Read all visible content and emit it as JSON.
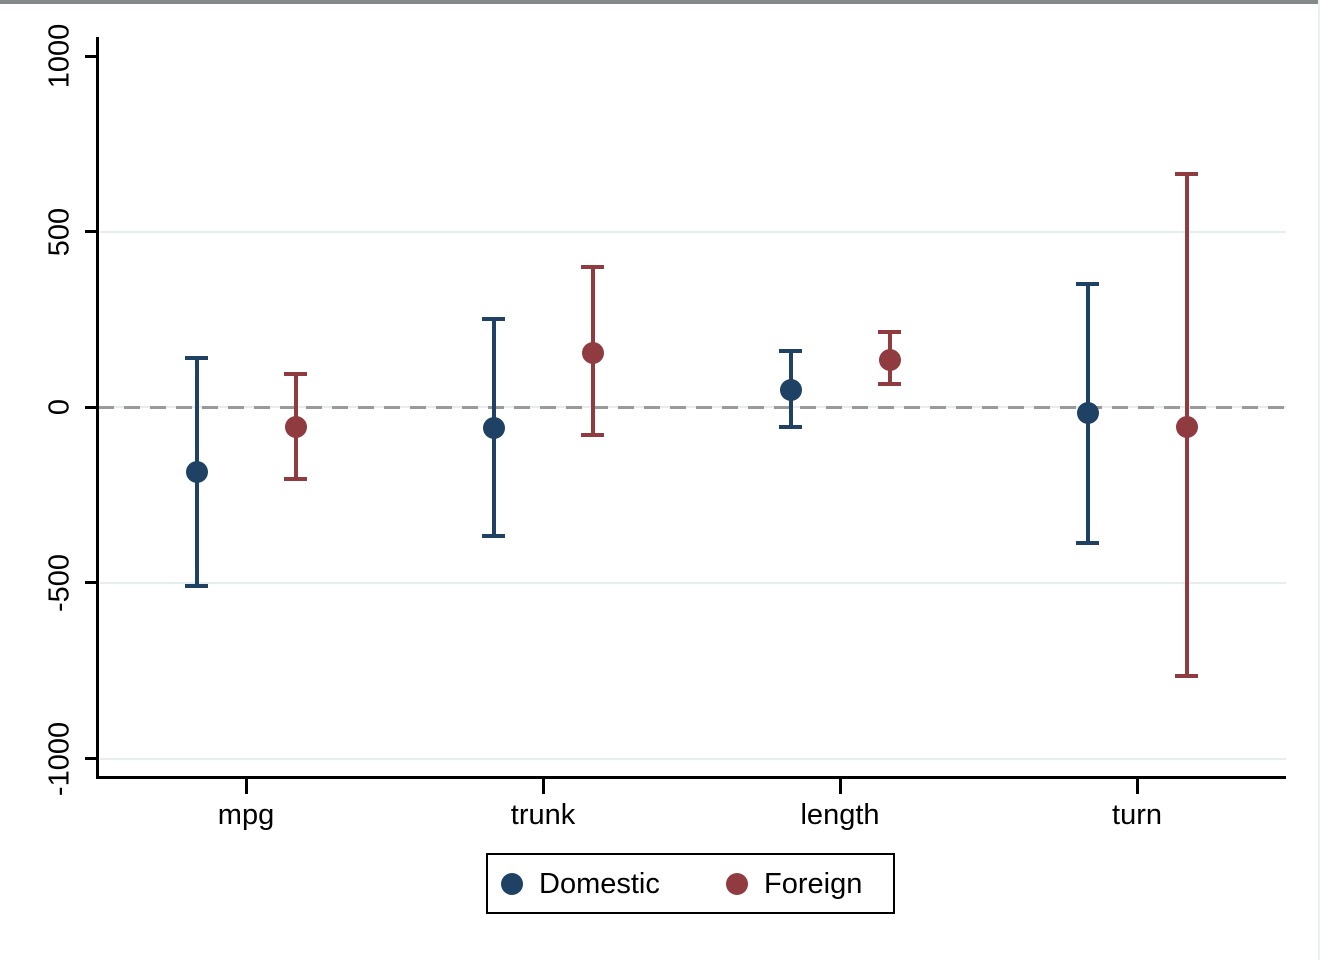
{
  "figure": {
    "background": "#ffffff",
    "top_strip_color": "#848889"
  },
  "chart_data": {
    "type": "scatter",
    "subtype": "coefficient-plot-with-error-bars",
    "title": "",
    "categories": [
      "mpg",
      "trunk",
      "length",
      "turn"
    ],
    "series": [
      {
        "name": "Domestic",
        "color": "#1e4164",
        "estimates": [
          -185,
          -60,
          50,
          -15
        ],
        "ci_low": [
          -510,
          -365,
          -55,
          -385
        ],
        "ci_high": [
          140,
          250,
          160,
          350
        ]
      },
      {
        "name": "Foreign",
        "color": "#903b3f",
        "estimates": [
          -55,
          155,
          135,
          -55
        ],
        "ci_low": [
          -205,
          -80,
          65,
          -765
        ],
        "ci_high": [
          95,
          400,
          215,
          665
        ]
      }
    ],
    "y_axis": {
      "tick_values": [
        1000,
        500,
        0,
        -500,
        -1000
      ],
      "tick_labels": [
        "1000",
        "500",
        "0",
        "-500",
        "-1000"
      ],
      "gridline_values": [
        500,
        0,
        -500,
        -1000
      ],
      "gridline_color": "#e4eef0",
      "range": [
        -1055,
        1060
      ]
    },
    "x_axis": {
      "labels": [
        "mpg",
        "trunk",
        "length",
        "turn"
      ]
    },
    "reference_line": {
      "value": 0,
      "style": "dashed",
      "color": "#9a9a9a"
    },
    "legend": {
      "position": "bottom",
      "entries": [
        "Domestic",
        "Foreign"
      ],
      "border_color": "#000000"
    },
    "grid": true,
    "legend_position": "bottom"
  }
}
